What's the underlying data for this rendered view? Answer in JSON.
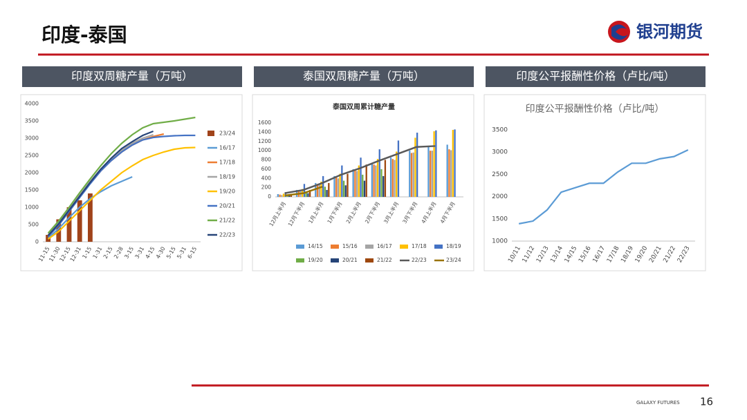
{
  "slide": {
    "title": "印度-泰国",
    "logo": "银河期货",
    "footer": "GALAXY FUTURES",
    "page": "16"
  },
  "panels": [
    "印度双周糖产量（万吨）",
    "泰国双周糖产量（万吨）",
    "印度公平报酬性价格（卢比/吨）"
  ],
  "chart_data": [
    {
      "type": "line",
      "legend": "right",
      "categories": [
        "11-15",
        "11-30",
        "12-15",
        "12-31",
        "1-15",
        "1-31",
        "2-15",
        "2-28",
        "3-15",
        "3-31",
        "4-15",
        "4-30",
        "5-15",
        "5-31",
        "6-15"
      ],
      "ylim": [
        0,
        4000
      ],
      "yticks": [
        0,
        500,
        1000,
        1500,
        2000,
        2500,
        3000,
        3500,
        4000
      ],
      "series": [
        {
          "name": "23/24",
          "type": "bar",
          "color": "#a0431a",
          "values": [
            200,
            650,
            1000,
            1200,
            1400,
            null,
            null,
            null,
            null,
            null,
            null,
            null,
            null,
            null,
            null
          ]
        },
        {
          "name": "16/17",
          "color": "#5b9bd5",
          "values": [
            100,
            380,
            700,
            1000,
            1250,
            1450,
            1620,
            1750,
            1880,
            null,
            null,
            null,
            null,
            null,
            null
          ]
        },
        {
          "name": "17/18",
          "color": "#ed7d31",
          "values": [
            150,
            500,
            900,
            1300,
            1700,
            2050,
            2350,
            2600,
            2800,
            2950,
            3050,
            3120,
            null,
            null,
            null
          ]
        },
        {
          "name": "18/19",
          "color": "#a5a5a5",
          "values": [
            200,
            550,
            950,
            1350,
            1750,
            2100,
            2400,
            2650,
            2850,
            3000,
            3100,
            null,
            null,
            null,
            null
          ]
        },
        {
          "name": "19/20",
          "color": "#ffc000",
          "values": [
            80,
            300,
            600,
            900,
            1200,
            1500,
            1750,
            2000,
            2200,
            2380,
            2500,
            2600,
            2680,
            2720,
            2730
          ]
        },
        {
          "name": "20/21",
          "color": "#4472c4",
          "values": [
            150,
            480,
            880,
            1280,
            1680,
            2050,
            2350,
            2600,
            2800,
            2950,
            3020,
            3050,
            3070,
            3080,
            3080
          ]
        },
        {
          "name": "21/22",
          "color": "#70ad47",
          "values": [
            250,
            600,
            1000,
            1420,
            1820,
            2200,
            2550,
            2850,
            3100,
            3300,
            3420,
            3460,
            3500,
            3550,
            3600
          ]
        },
        {
          "name": "22/23",
          "color": "#264478",
          "values": [
            180,
            520,
            920,
            1320,
            1720,
            2100,
            2420,
            2700,
            2900,
            3080,
            3200,
            null,
            null,
            null,
            null
          ]
        }
      ]
    },
    {
      "type": "bar",
      "title": "泰国双周累计糖产量",
      "legend": "bottom",
      "categories": [
        "12月上半月",
        "12月下半月",
        "1月上半月",
        "1月下半月",
        "2月上半月",
        "2月下半月",
        "3月上半月",
        "3月下半月",
        "4月上半月",
        "4月下半月"
      ],
      "ylim": [
        0,
        1600
      ],
      "yticks": [
        0,
        200,
        400,
        600,
        800,
        1000,
        1200,
        1400,
        1600
      ],
      "series": [
        {
          "name": "14/15",
          "color": "#5b9bd5",
          "values": [
            60,
            150,
            300,
            450,
            600,
            720,
            850,
            1000,
            1100,
            1130
          ]
        },
        {
          "name": "15/16",
          "color": "#ed7d31",
          "values": [
            50,
            130,
            280,
            420,
            580,
            700,
            820,
            950,
            1000,
            1030
          ]
        },
        {
          "name": "16/17",
          "color": "#a5a5a5",
          "values": [
            40,
            120,
            260,
            400,
            560,
            680,
            800,
            960,
            1000,
            1010
          ]
        },
        {
          "name": "17/18",
          "color": "#ffc000",
          "values": [
            70,
            170,
            330,
            500,
            680,
            820,
            980,
            1280,
            1420,
            1450
          ]
        },
        {
          "name": "18/19",
          "color": "#4472c4",
          "values": [
            100,
            280,
            450,
            680,
            850,
            1030,
            1220,
            1390,
            1440,
            1460
          ]
        },
        {
          "name": "19/20",
          "color": "#70ad47",
          "values": [
            50,
            120,
            220,
            350,
            480,
            600,
            null,
            null,
            null,
            null
          ]
        },
        {
          "name": "20/21",
          "color": "#264478",
          "values": [
            30,
            80,
            150,
            250,
            350,
            450,
            null,
            null,
            null,
            null
          ]
        },
        {
          "name": "21/22",
          "color": "#9e480e",
          "values": [
            60,
            150,
            300,
            500,
            700,
            800,
            null,
            null,
            null,
            null
          ]
        },
        {
          "name": "22/23",
          "type": "line",
          "color": "#595959",
          "values": [
            80,
            150,
            300,
            480,
            620,
            780,
            930,
            1080,
            1100,
            null
          ]
        },
        {
          "name": "23/24",
          "type": "line",
          "color": "#997300",
          "values": [
            30,
            80,
            220,
            null,
            null,
            null,
            null,
            null,
            null,
            null
          ]
        }
      ]
    },
    {
      "type": "line",
      "title": "印度公平报酬性价格（卢比/吨）",
      "categories": [
        "10/11",
        "11/12",
        "12/13",
        "13/14",
        "14/15",
        "15/16",
        "16/17",
        "17/18",
        "18/19",
        "19/20",
        "20/21",
        "21/22",
        "22/23"
      ],
      "ylim": [
        1000,
        3500
      ],
      "yticks": [
        1000,
        1500,
        2000,
        2500,
        3000,
        3500
      ],
      "color": "#5b9bd5",
      "values": [
        1390,
        1450,
        1700,
        2100,
        2200,
        2300,
        2300,
        2550,
        2750,
        2750,
        2850,
        2900,
        3050
      ]
    }
  ]
}
